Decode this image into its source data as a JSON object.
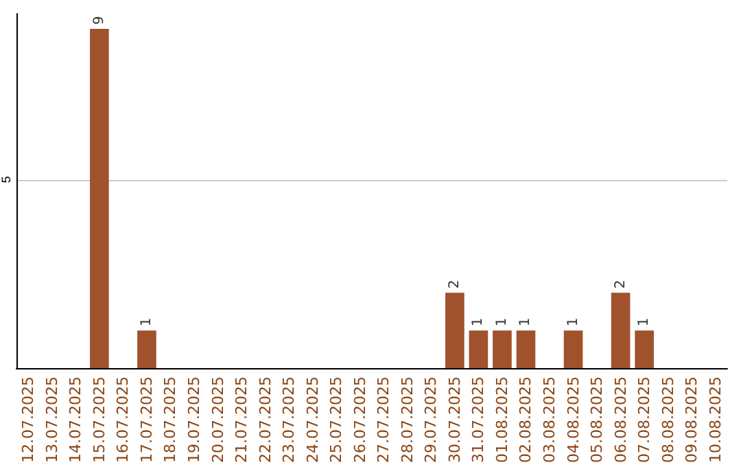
{
  "chart_data": {
    "type": "bar",
    "categories": [
      "12.07.2025",
      "13.07.2025",
      "14.07.2025",
      "15.07.2025",
      "16.07.2025",
      "17.07.2025",
      "18.07.2025",
      "19.07.2025",
      "20.07.2025",
      "21.07.2025",
      "22.07.2025",
      "23.07.2025",
      "24.07.2025",
      "25.07.2025",
      "26.07.2025",
      "27.07.2025",
      "28.07.2025",
      "29.07.2025",
      "30.07.2025",
      "31.07.2025",
      "01.08.2025",
      "02.08.2025",
      "03.08.2025",
      "04.08.2025",
      "05.08.2025",
      "06.08.2025",
      "07.08.2025",
      "08.08.2025",
      "09.08.2025",
      "10.08.2025"
    ],
    "values": [
      0,
      0,
      0,
      9,
      0,
      1,
      0,
      0,
      0,
      0,
      0,
      0,
      0,
      0,
      0,
      0,
      0,
      0,
      2,
      1,
      1,
      1,
      0,
      1,
      0,
      2,
      1,
      0,
      0,
      0
    ],
    "value_labels": [
      null,
      null,
      null,
      "9",
      null,
      "1",
      null,
      null,
      null,
      null,
      null,
      null,
      null,
      null,
      null,
      null,
      null,
      null,
      "2",
      "1",
      "1",
      "1",
      null,
      "1",
      null,
      "2",
      "1",
      null,
      null,
      null
    ],
    "color": "#a0522d",
    "ylim": [
      0,
      9.4
    ],
    "yticks": [
      5
    ],
    "grid": "y"
  }
}
